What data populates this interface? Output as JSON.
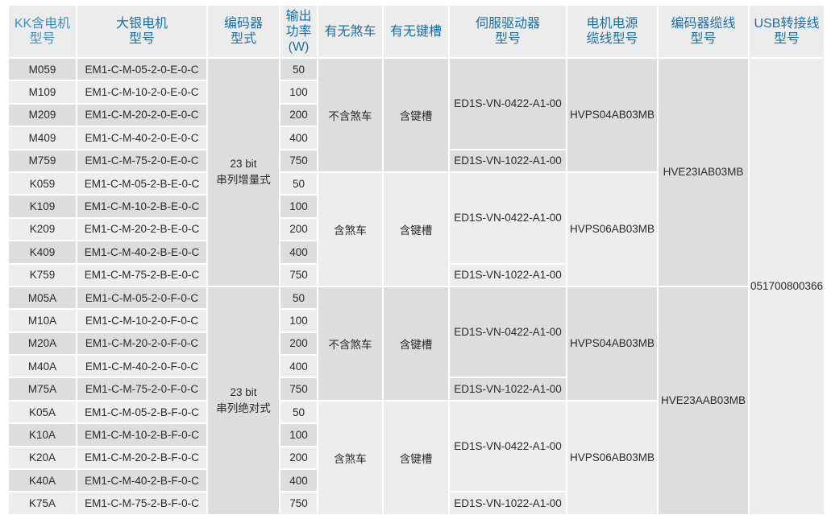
{
  "headers": [
    {
      "line1": "KK含电机",
      "line2": "型号"
    },
    {
      "line1": "大银电机",
      "line2": "型号"
    },
    {
      "line1": "编码器",
      "line2": "型式"
    },
    {
      "line1": "输出",
      "line2": "功率",
      "line3": "(W)"
    },
    {
      "line1": "有无煞车"
    },
    {
      "line1": "有无键槽"
    },
    {
      "line1": "伺服驱动器",
      "line2": "型号"
    },
    {
      "line1": "电机电源",
      "line2": "缆线型号"
    },
    {
      "line1": "编码器缆线",
      "line2": "型号"
    },
    {
      "line1": "USB转接线",
      "line2": "型号"
    }
  ],
  "rows": [
    {
      "kk": "M059",
      "motor": "EM1-C-M-05-2-0-E-0-C",
      "power": "50"
    },
    {
      "kk": "M109",
      "motor": "EM1-C-M-10-2-0-E-0-C",
      "power": "100"
    },
    {
      "kk": "M209",
      "motor": "EM1-C-M-20-2-0-E-0-C",
      "power": "200"
    },
    {
      "kk": "M409",
      "motor": "EM1-C-M-40-2-0-E-0-C",
      "power": "400"
    },
    {
      "kk": "M759",
      "motor": "EM1-C-M-75-2-0-E-0-C",
      "power": "750"
    },
    {
      "kk": "K059",
      "motor": "EM1-C-M-05-2-B-E-0-C",
      "power": "50"
    },
    {
      "kk": "K109",
      "motor": "EM1-C-M-10-2-B-E-0-C",
      "power": "100"
    },
    {
      "kk": "K209",
      "motor": "EM1-C-M-20-2-B-E-0-C",
      "power": "200"
    },
    {
      "kk": "K409",
      "motor": "EM1-C-M-40-2-B-E-0-C",
      "power": "400"
    },
    {
      "kk": "K759",
      "motor": "EM1-C-M-75-2-B-E-0-C",
      "power": "750"
    },
    {
      "kk": "M05A",
      "motor": "EM1-C-M-05-2-0-F-0-C",
      "power": "50"
    },
    {
      "kk": "M10A",
      "motor": "EM1-C-M-10-2-0-F-0-C",
      "power": "100"
    },
    {
      "kk": "M20A",
      "motor": "EM1-C-M-20-2-0-F-0-C",
      "power": "200"
    },
    {
      "kk": "M40A",
      "motor": "EM1-C-M-40-2-0-F-0-C",
      "power": "400"
    },
    {
      "kk": "M75A",
      "motor": "EM1-C-M-75-2-0-F-0-C",
      "power": "750"
    },
    {
      "kk": "K05A",
      "motor": "EM1-C-M-05-2-B-F-0-C",
      "power": "50"
    },
    {
      "kk": "K10A",
      "motor": "EM1-C-M-10-2-B-F-0-C",
      "power": "100"
    },
    {
      "kk": "K20A",
      "motor": "EM1-C-M-20-2-B-F-0-C",
      "power": "200"
    },
    {
      "kk": "K40A",
      "motor": "EM1-C-M-40-2-B-F-0-C",
      "power": "400"
    },
    {
      "kk": "K75A",
      "motor": "EM1-C-M-75-2-B-F-0-C",
      "power": "750"
    }
  ],
  "groups": [
    {
      "brake": "不含煞车",
      "keyway": "含键槽",
      "driver_small": "ED1S-VN-0422-A1-00",
      "driver_large": "ED1S-VN-1022-A1-00",
      "power_cable": "HVPS04AB03MB"
    },
    {
      "brake": "含煞车",
      "keyway": "含键槽",
      "driver_small": "ED1S-VN-0422-A1-00",
      "driver_large": "ED1S-VN-1022-A1-00",
      "power_cable": "HVPS06AB03MB"
    },
    {
      "brake": "不含煞车",
      "keyway": "含键槽",
      "driver_small": "ED1S-VN-0422-A1-00",
      "driver_large": "ED1S-VN-1022-A1-00",
      "power_cable": "HVPS04AB03MB"
    },
    {
      "brake": "含煞车",
      "keyway": "含键槽",
      "driver_small": "ED1S-VN-0422-A1-00",
      "driver_large": "ED1S-VN-1022-A1-00",
      "power_cable": "HVPS06AB03MB"
    }
  ],
  "encoders": [
    {
      "line1": "23 bit",
      "line2": "串列增量式",
      "cable": "HVE23IAB03MB"
    },
    {
      "line1": "23 bit",
      "line2": "串列绝对式",
      "cable": "HVE23AAB03MB"
    }
  ],
  "usb_cable": "051700800366",
  "colors": {
    "header_text": "#1f6f9c",
    "dark_cell": "#dcdddd",
    "light_cell": "#ededed"
  }
}
